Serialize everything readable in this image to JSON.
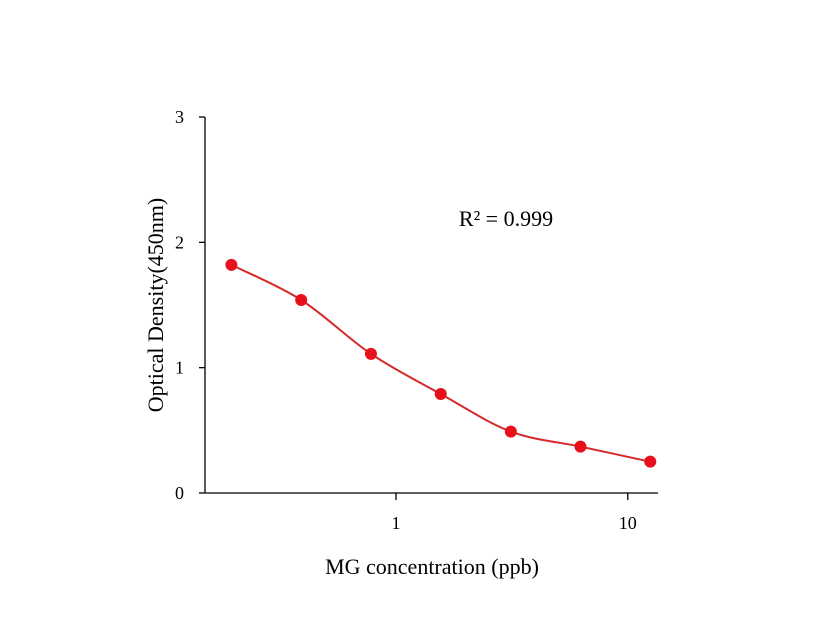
{
  "chart_data": {
    "type": "scatter",
    "xlabel": "MG concentration (ppb)",
    "ylabel": "Optical Density(450nm)",
    "x_scale": "log",
    "xlim": [
      0.15,
      13.5
    ],
    "ylim": [
      0,
      3
    ],
    "x_ticks": [
      1,
      10
    ],
    "x_tick_labels": [
      "1",
      "10"
    ],
    "y_ticks": [
      0,
      1,
      2,
      3
    ],
    "y_tick_labels": [
      "0",
      "1",
      "2",
      "3"
    ],
    "grid": false,
    "annotation": "R² = 0.999",
    "series": [
      {
        "color": "#e8101b",
        "curve_color": "#d42a2a",
        "x": [
          0.195,
          0.39,
          0.78,
          1.56,
          3.13,
          6.25,
          12.5
        ],
        "y": [
          1.82,
          1.54,
          1.11,
          0.79,
          0.49,
          0.37,
          0.25
        ]
      }
    ]
  }
}
